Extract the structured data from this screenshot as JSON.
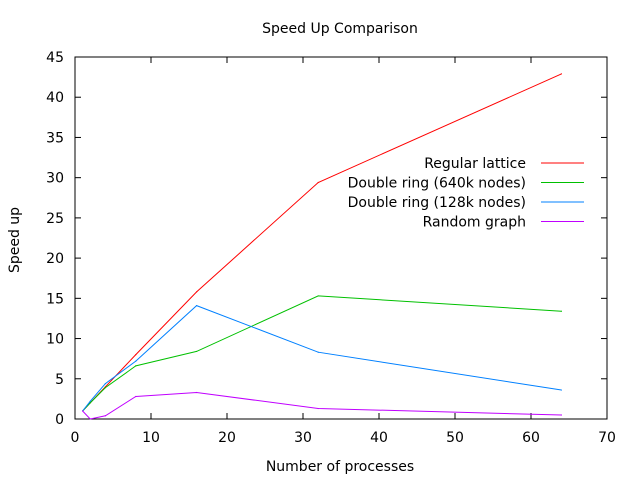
{
  "chart_data": {
    "type": "line",
    "title": "Speed Up Comparison",
    "xlabel": "Number of processes",
    "ylabel": "Speed up",
    "xlim": [
      0,
      70
    ],
    "ylim": [
      0,
      45
    ],
    "xticks": [
      0,
      10,
      20,
      30,
      40,
      50,
      60,
      70
    ],
    "yticks": [
      0,
      5,
      10,
      15,
      20,
      25,
      30,
      35,
      40,
      45
    ],
    "grid": false,
    "legend_position": "right",
    "series": [
      {
        "name": "Regular lattice",
        "color": "#ff0000",
        "x": [
          1,
          2,
          4,
          8,
          16,
          32,
          64
        ],
        "y": [
          1,
          2.0,
          4.0,
          8.0,
          15.8,
          29.4,
          42.9
        ]
      },
      {
        "name": "Double ring (640k nodes)",
        "color": "#00c000",
        "x": [
          1,
          2,
          4,
          8,
          16,
          32,
          64
        ],
        "y": [
          1,
          2.0,
          3.9,
          6.6,
          8.4,
          15.3,
          13.4
        ]
      },
      {
        "name": "Double ring (128k nodes)",
        "color": "#0080ff",
        "x": [
          1,
          2,
          4,
          8,
          16,
          32,
          64
        ],
        "y": [
          1,
          2.2,
          4.4,
          7.2,
          14.1,
          8.3,
          3.6
        ]
      },
      {
        "name": "Random graph",
        "color": "#c000ff",
        "x": [
          1,
          2,
          4,
          8,
          16,
          32,
          64
        ],
        "y": [
          1,
          0,
          0.4,
          2.8,
          3.3,
          1.3,
          0.5
        ]
      }
    ]
  }
}
